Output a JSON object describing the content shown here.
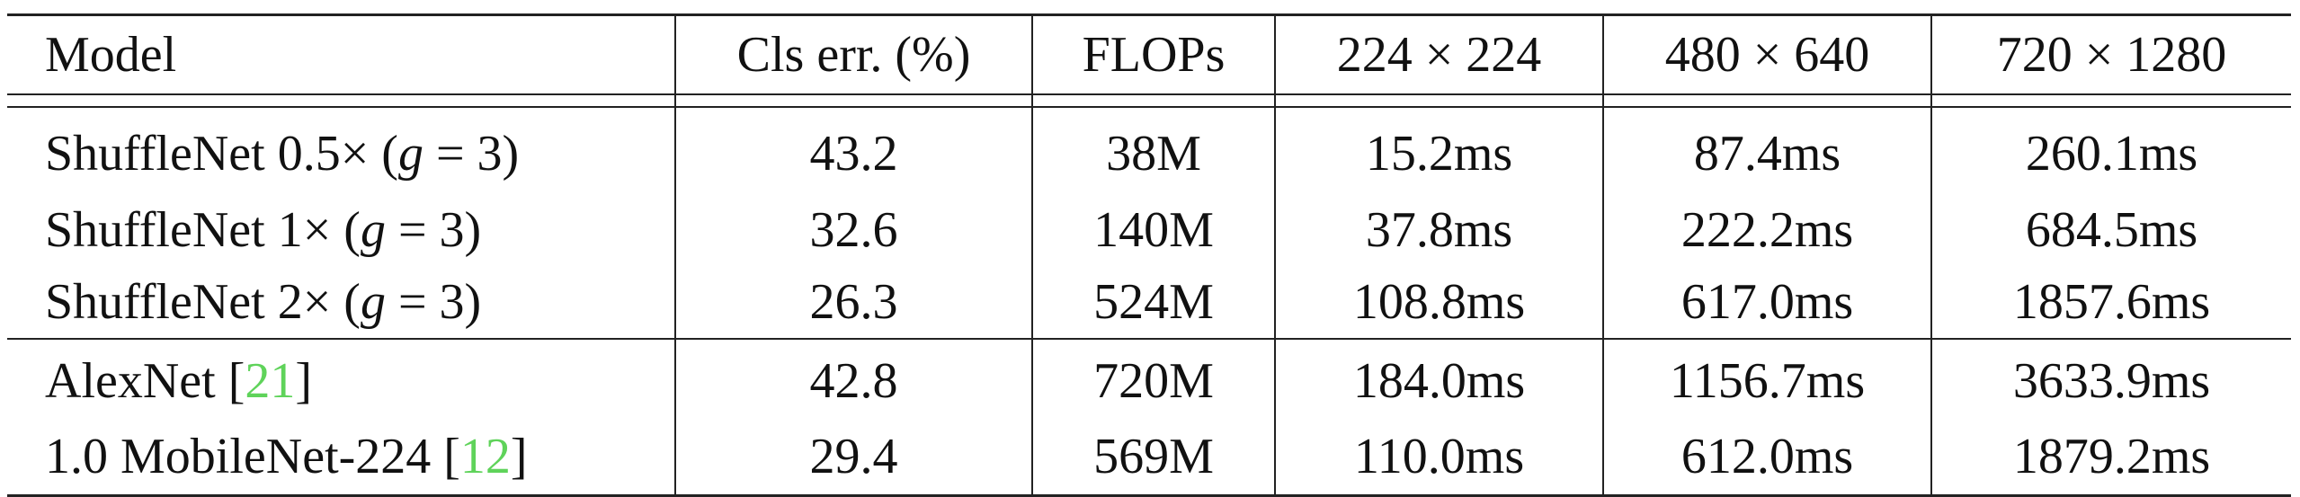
{
  "table": {
    "headers": [
      "Model",
      "Cls err. (%)",
      "FLOPs",
      "224 × 224",
      "480 × 640",
      "720 × 1280"
    ],
    "shufflenet_rows": [
      {
        "name_prefix": "ShuffleNet 0.5× (",
        "var": "g",
        "name_suffix": " = 3)",
        "cls_err": "43.2",
        "flops": "38M",
        "t224": "15.2ms",
        "t480": "87.4ms",
        "t720": "260.1ms"
      },
      {
        "name_prefix": "ShuffleNet 1× (",
        "var": "g",
        "name_suffix": " = 3)",
        "cls_err": "32.6",
        "flops": "140M",
        "t224": "37.8ms",
        "t480": "222.2ms",
        "t720": "684.5ms"
      },
      {
        "name_prefix": "ShuffleNet 2× (",
        "var": "g",
        "name_suffix": " = 3)",
        "cls_err": "26.3",
        "flops": "524M",
        "t224": "108.8ms",
        "t480": "617.0ms",
        "t720": "1857.6ms"
      }
    ],
    "baseline_rows": [
      {
        "name_prefix": "AlexNet [",
        "cite": "21",
        "name_suffix": "]",
        "cls_err": "42.8",
        "flops": "720M",
        "t224": "184.0ms",
        "t480": "1156.7ms",
        "t720": "3633.9ms"
      },
      {
        "name_prefix": "1.0 MobileNet-224 [",
        "cite": "12",
        "name_suffix": "]",
        "cls_err": "29.4",
        "flops": "569M",
        "t224": "110.0ms",
        "t480": "612.0ms",
        "t720": "1879.2ms"
      }
    ]
  },
  "colors": {
    "citation": "#5fd35a",
    "text": "#111111",
    "rules": "#222222"
  }
}
